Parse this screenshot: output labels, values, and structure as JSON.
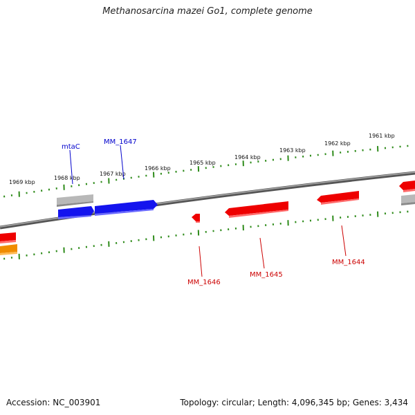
{
  "title": "Methanosarcina mazei Go1, complete genome",
  "footer": {
    "accession": "Accession: NC_003901",
    "summary": "Topology: circular; Length: 4,096,345 bp; Genes: 3,434"
  },
  "colors": {
    "backbone": "#777777",
    "ticks": "#2e8b1a",
    "forward_gene": "#0000ee",
    "reverse_gene": "#ee0000",
    "other_gene": "#f08c00",
    "pseudo_gene": "#b4b4b4",
    "forward_label": "#0000cc",
    "reverse_label": "#cc0000"
  },
  "tick_labels": [
    "1969 kbp",
    "1968 kbp",
    "1967 kbp",
    "1966 kbp",
    "1965 kbp",
    "1964 kbp",
    "1963 kbp",
    "1962 kbp",
    "1961 kbp"
  ],
  "gene_labels": {
    "mtaC": "mtaC",
    "mm1647": "MM_1647",
    "mm1646": "MM_1646",
    "mm1645": "MM_1645",
    "mm1644": "MM_1644"
  }
}
